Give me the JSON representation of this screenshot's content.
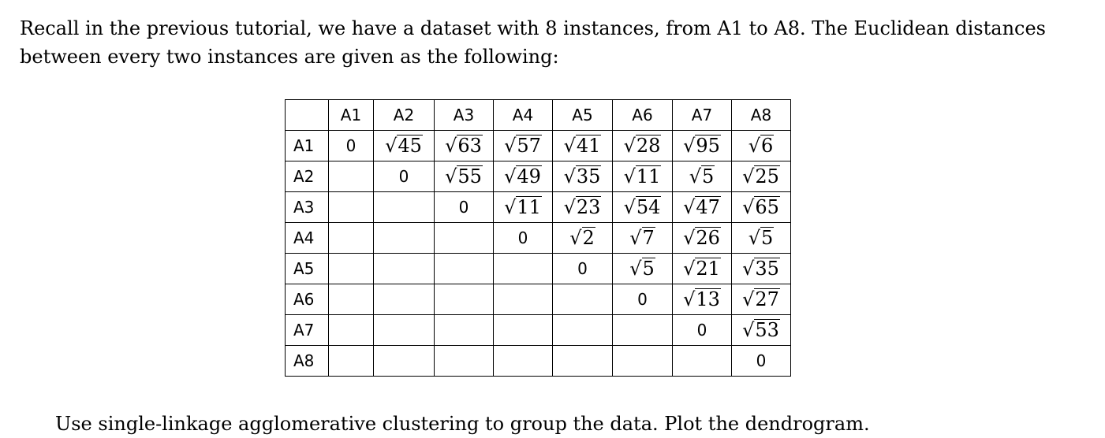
{
  "intro": "Recall in the previous tutorial, we have a dataset with 8 instances, from A1 to A8. The Euclidean distances between every two instances are given as the following:",
  "table": {
    "corner": "",
    "columns": [
      "A1",
      "A2",
      "A3",
      "A4",
      "A5",
      "A6",
      "A7",
      "A8"
    ],
    "rows": [
      {
        "label": "A1",
        "cells": [
          "0",
          "45",
          "63",
          "57",
          "41",
          "28",
          "95",
          "6"
        ]
      },
      {
        "label": "A2",
        "cells": [
          "",
          "0",
          "55",
          "49",
          "35",
          "11",
          "5",
          "25"
        ]
      },
      {
        "label": "A3",
        "cells": [
          "",
          "",
          "0",
          "11",
          "23",
          "54",
          "47",
          "65"
        ]
      },
      {
        "label": "A4",
        "cells": [
          "",
          "",
          "",
          "0",
          "2",
          "7",
          "26",
          "5"
        ]
      },
      {
        "label": "A5",
        "cells": [
          "",
          "",
          "",
          "",
          "0",
          "5",
          "21",
          "35"
        ]
      },
      {
        "label": "A6",
        "cells": [
          "",
          "",
          "",
          "",
          "",
          "0",
          "13",
          "27"
        ]
      },
      {
        "label": "A7",
        "cells": [
          "",
          "",
          "",
          "",
          "",
          "",
          "0",
          "53"
        ]
      },
      {
        "label": "A8",
        "cells": [
          "",
          "",
          "",
          "",
          "",
          "",
          "",
          "0"
        ]
      }
    ],
    "radical_symbol": "√"
  },
  "outro": "Use single-linkage agglomerative clustering to group the data. Plot the dendrogram."
}
